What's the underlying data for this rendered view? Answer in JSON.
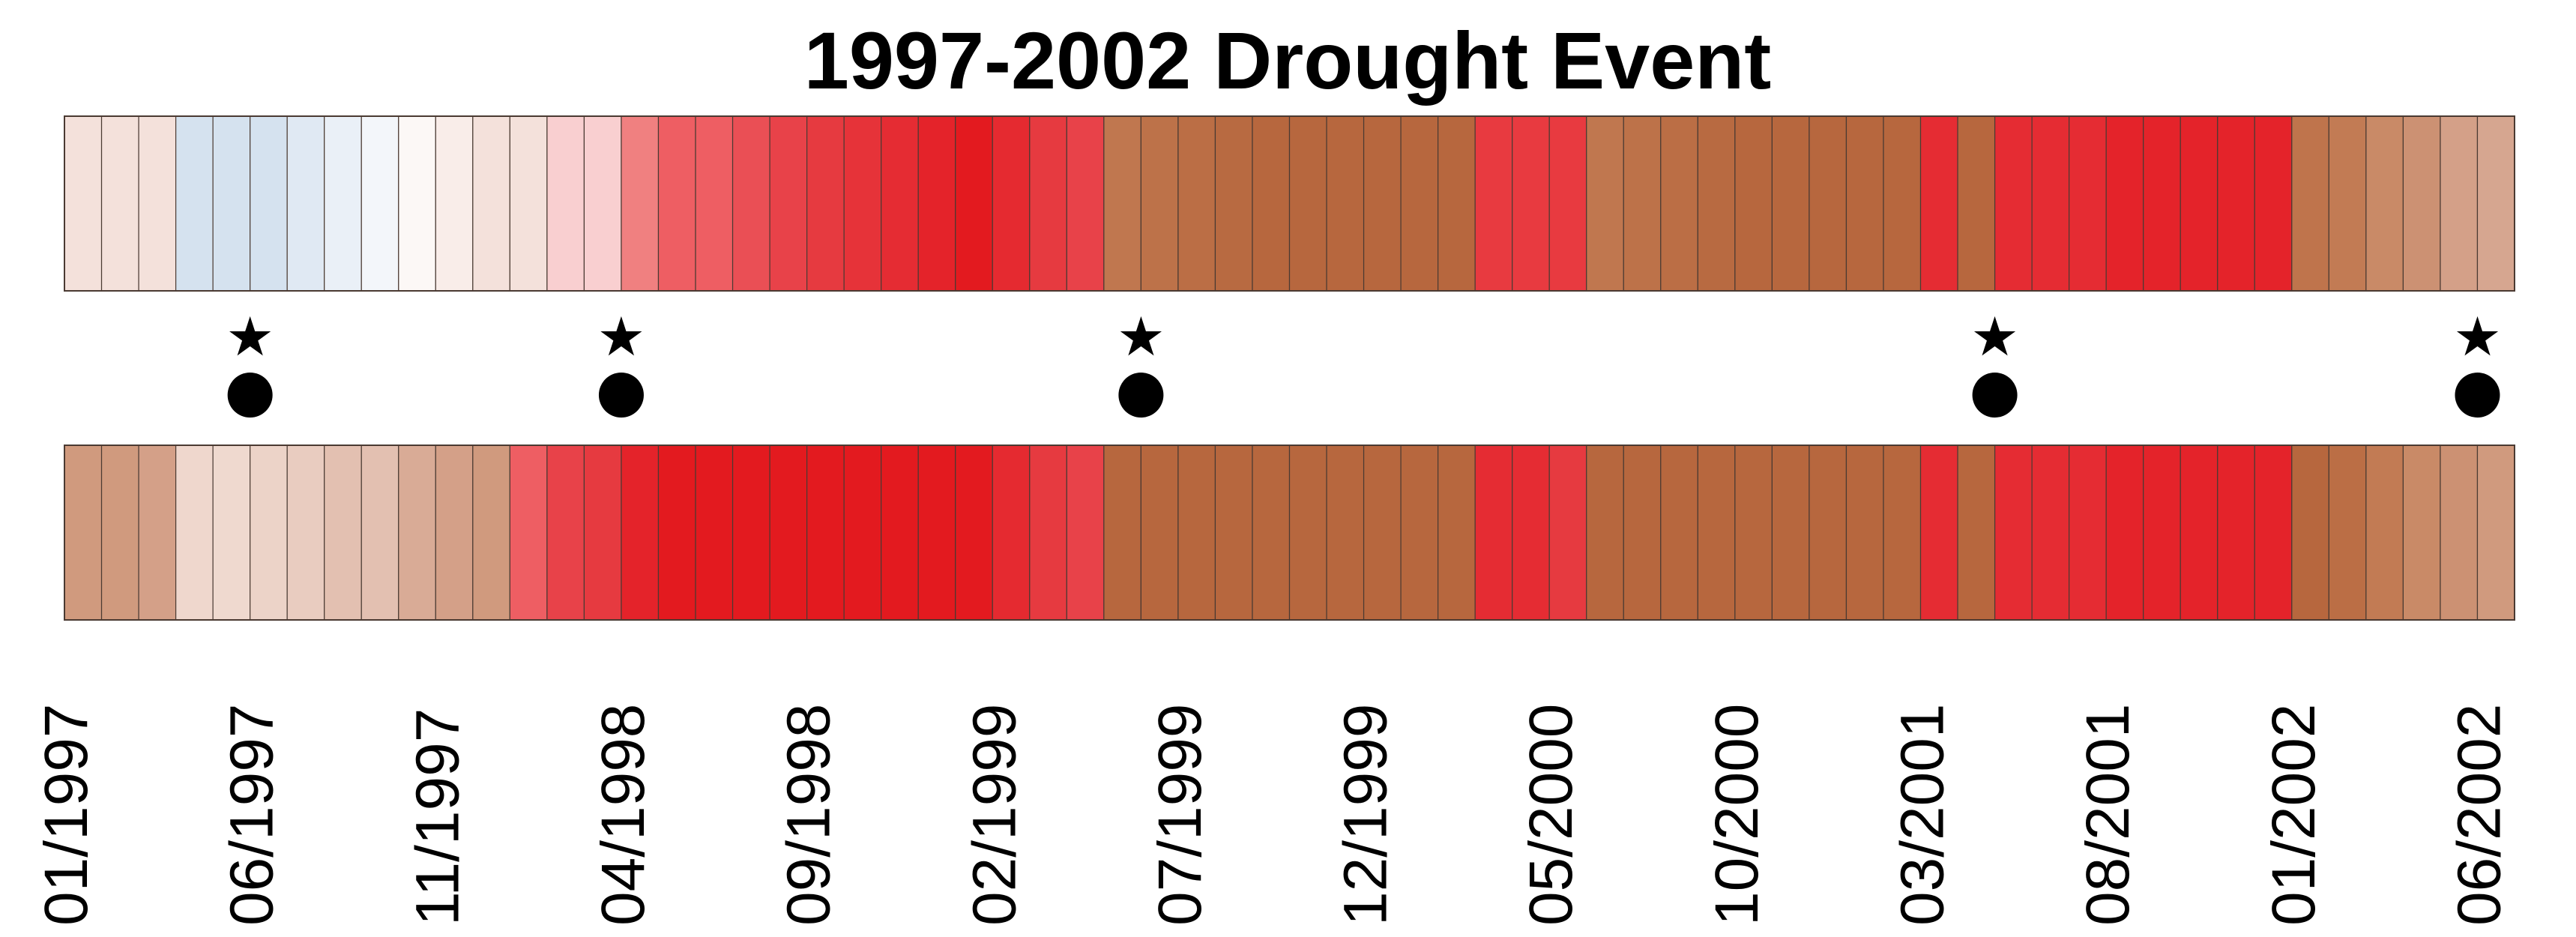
{
  "chart_data": {
    "type": "heatmap",
    "title": "1997-2002 Drought Event",
    "xlabel": "",
    "ylabel": "",
    "x_tick_labels": [
      "01/1997",
      "06/1997",
      "11/1997",
      "04/1998",
      "09/1998",
      "02/1999",
      "07/1999",
      "12/1999",
      "05/2000",
      "10/2000",
      "03/2001",
      "08/2001",
      "01/2002",
      "06/2002"
    ],
    "tick_month_index": [
      0,
      5,
      10,
      15,
      20,
      25,
      30,
      35,
      40,
      45,
      50,
      55,
      60,
      65
    ],
    "n_months": 66,
    "start_month": "01/1997",
    "rows": [
      {
        "colors": [
          "#f4e1db",
          "#f4e1db",
          "#f4e1db",
          "#d5e2ef",
          "#d5e2ef",
          "#d5e2ef",
          "#e0e9f3",
          "#eaf0f7",
          "#f3f6fa",
          "#fcf8f6",
          "#f9ede9",
          "#f4e1db",
          "#f4e1db",
          "#f9cfd0",
          "#f9cfd0",
          "#f08080",
          "#ee5e63",
          "#ee5e63",
          "#ea4f55",
          "#e84249",
          "#e63a40",
          "#e63339",
          "#e52c33",
          "#e4232a",
          "#e31a1f",
          "#e52a30",
          "#e63a40",
          "#e84249",
          "#c0774f",
          "#bd7249",
          "#bb6e45",
          "#b86a41",
          "#b7673e",
          "#b7673e",
          "#b7673e",
          "#b7673e",
          "#b7673e",
          "#b7673e",
          "#e83a40",
          "#e83a40",
          "#e83a40",
          "#c0774f",
          "#bd7249",
          "#bb6e45",
          "#b86a41",
          "#b7673e",
          "#b7673e",
          "#b7673e",
          "#b7673e",
          "#b7673e",
          "#e52c33",
          "#b7673e",
          "#e52c33",
          "#e52c33",
          "#e52c33",
          "#e4232a",
          "#e4232a",
          "#e4232a",
          "#e4232a",
          "#e4232a",
          "#bf744c",
          "#c27b54",
          "#c98a67",
          "#cc9173",
          "#d4a088",
          "#d6a690"
        ]
      },
      {
        "colors": [
          "#d09a7e",
          "#d09a7e",
          "#d4a088",
          "#efd7cd",
          "#efd9cf",
          "#ecd3c8",
          "#e9ccc0",
          "#e3c0b1",
          "#e3c0b1",
          "#d9ab96",
          "#d4a088",
          "#d09a7e",
          "#ee5e63",
          "#e84249",
          "#e63a40",
          "#e4232a",
          "#e31a1f",
          "#e31a1f",
          "#e31a1f",
          "#e31a1f",
          "#e31a1f",
          "#e31a1f",
          "#e31a1f",
          "#e31a1f",
          "#e31a1f",
          "#e52a30",
          "#e63a40",
          "#e84249",
          "#b7673e",
          "#b7673e",
          "#b7673e",
          "#b7673e",
          "#b7673e",
          "#b7673e",
          "#b7673e",
          "#b7673e",
          "#b7673e",
          "#b7673e",
          "#e52c33",
          "#e52c33",
          "#e63a40",
          "#b7673e",
          "#b7673e",
          "#b7673e",
          "#b7673e",
          "#b7673e",
          "#b7673e",
          "#b7673e",
          "#b7673e",
          "#b7673e",
          "#e52c33",
          "#b7673e",
          "#e52c33",
          "#e52c33",
          "#e52c33",
          "#e4232a",
          "#e4232a",
          "#e4232a",
          "#e4232a",
          "#e4232a",
          "#b7673e",
          "#bb6e45",
          "#c27b54",
          "#c98a67",
          "#cc9173",
          "#d09a7e"
        ]
      }
    ],
    "markers": [
      {
        "month_index": 4.5,
        "star": "★",
        "dot": "●"
      },
      {
        "month_index": 14.5,
        "star": "★",
        "dot": "●"
      },
      {
        "month_index": 28.5,
        "star": "★",
        "dot": "●"
      },
      {
        "month_index": 51.5,
        "star": "★",
        "dot": "●"
      },
      {
        "month_index": 64.5,
        "star": "★",
        "dot": "●"
      }
    ],
    "grid": true,
    "legend": "none"
  }
}
